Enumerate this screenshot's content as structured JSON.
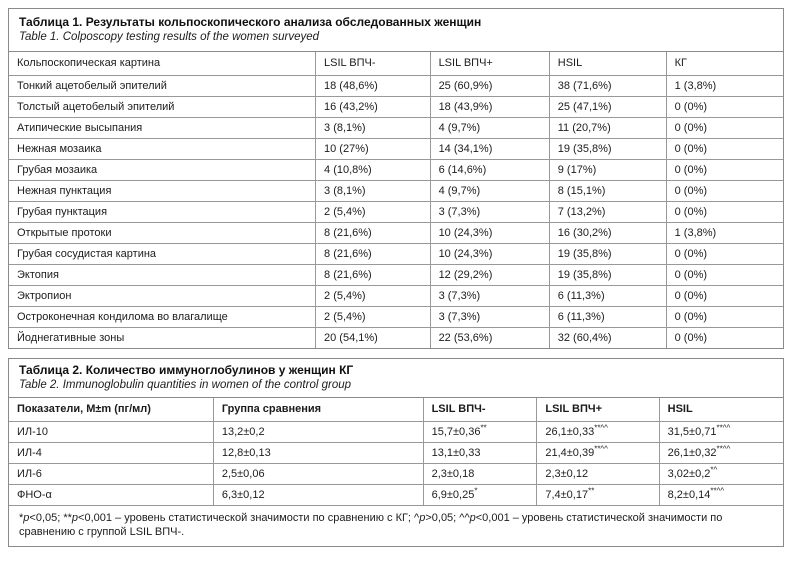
{
  "table1": {
    "title_ru": "Таблица 1. Результаты кольпоскопического анализа обследованных женщин",
    "title_en": "Table 1. Colposcopy testing results of the women surveyed",
    "columns": [
      "Кольпоскопическая картина",
      "LSIL ВПЧ-",
      "LSIL ВПЧ+",
      "HSIL",
      "КГ"
    ],
    "rows": [
      [
        "Тонкий ацетобелый эпителий",
        "18 (48,6%)",
        "25 (60,9%)",
        "38 (71,6%)",
        "1 (3,8%)"
      ],
      [
        "Толстый ацетобелый эпителий",
        "16 (43,2%)",
        "18 (43,9%)",
        "25 (47,1%)",
        "0 (0%)"
      ],
      [
        "Атипические высыпания",
        "3 (8,1%)",
        "4 (9,7%)",
        "11 (20,7%)",
        "0 (0%)"
      ],
      [
        "Нежная мозаика",
        "10 (27%)",
        "14 (34,1%)",
        "19 (35,8%)",
        "0 (0%)"
      ],
      [
        "Грубая мозаика",
        "4 (10,8%)",
        "6 (14,6%)",
        "9 (17%)",
        "0 (0%)"
      ],
      [
        "Нежная пунктация",
        "3 (8,1%)",
        "4 (9,7%)",
        "8 (15,1%)",
        "0 (0%)"
      ],
      [
        "Грубая пунктация",
        "2 (5,4%)",
        "3 (7,3%)",
        "7 (13,2%)",
        "0 (0%)"
      ],
      [
        "Открытые протоки",
        "8 (21,6%)",
        "10 (24,3%)",
        "16 (30,2%)",
        "1 (3,8%)"
      ],
      [
        "Грубая сосудистая картина",
        "8 (21,6%)",
        "10 (24,3%)",
        "19 (35,8%)",
        "0 (0%)"
      ],
      [
        "Эктопия",
        "8 (21,6%)",
        "12 (29,2%)",
        "19 (35,8%)",
        "0 (0%)"
      ],
      [
        "Эктропион",
        "2 (5,4%)",
        "3 (7,3%)",
        "6 (11,3%)",
        "0 (0%)"
      ],
      [
        "Остроконечная кондилома во влагалище",
        "2 (5,4%)",
        "3 (7,3%)",
        "6 (11,3%)",
        "0 (0%)"
      ],
      [
        "Йоднегативные зоны",
        "20 (54,1%)",
        "22 (53,6%)",
        "32 (60,4%)",
        "0 (0%)"
      ]
    ]
  },
  "table2": {
    "title_ru": "Таблица 2. Количество иммуноглобулинов у женщин КГ",
    "title_en": "Table 2. Immunoglobulin quantities in women of the control group",
    "columns": [
      "Показатели, M±m (пг/мл)",
      "Группа сравнения",
      "LSIL ВПЧ-",
      "LSIL ВПЧ+",
      "HSIL"
    ],
    "rows": [
      [
        "ИЛ-10",
        "13,2±0,2",
        "15,7±0,36**",
        "26,1±0,33**^^",
        "31,5±0,71**^^"
      ],
      [
        "ИЛ-4",
        "12,8±0,13",
        "13,1±0,33",
        "21,4±0,39**^^",
        "26,1±0,32**^^"
      ],
      [
        "ИЛ-6",
        "2,5±0,06",
        "2,3±0,18",
        "2,3±0,12",
        "3,02±0,2*^"
      ],
      [
        "ФНО-α",
        "6,3±0,12",
        "6,9±0,25*",
        "7,4±0,17**",
        "8,2±0,14**^^"
      ]
    ],
    "footnote": "*p<0,05; **p<0,001 – уровень статистической значимости по сравнению с КГ; ^p>0,05; ^^p<0,001 – уровень статистической значимости по сравнению с группой LSIL ВПЧ-."
  }
}
